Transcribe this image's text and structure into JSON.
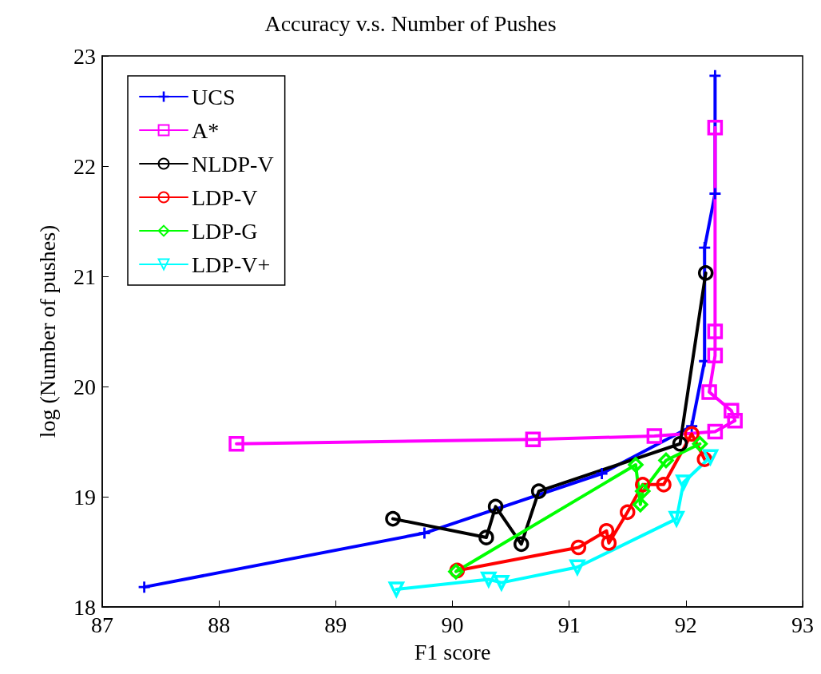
{
  "chart_data": {
    "type": "line",
    "title": "Accuracy v.s. Number of Pushes",
    "xlabel": "F1 score",
    "ylabel": "log (Number of pushes)",
    "xlim": [
      87,
      93
    ],
    "xticks": [
      87,
      88,
      89,
      90,
      91,
      92,
      93
    ],
    "ylim": [
      18,
      23
    ],
    "yticks": [
      18,
      19,
      20,
      21,
      22,
      23
    ],
    "grid": false,
    "legend": "top left",
    "line_style": "solid",
    "series": [
      {
        "name": "UCS",
        "color": "#0000ff",
        "marker": "cross",
        "x": [
          87.36,
          89.76,
          91.28,
          92.05,
          92.16,
          92.16,
          92.25,
          92.25
        ],
        "values": [
          18.18,
          18.67,
          19.21,
          19.64,
          20.23,
          21.26,
          21.75,
          22.82
        ]
      },
      {
        "name": "A*",
        "color": "#ff00ff",
        "marker": "square",
        "x": [
          88.15,
          90.69,
          91.73,
          92.25,
          92.42,
          92.39,
          92.2,
          92.25,
          92.25,
          92.25
        ],
        "values": [
          19.48,
          19.52,
          19.55,
          19.59,
          19.69,
          19.78,
          19.95,
          20.28,
          20.5,
          22.35
        ]
      },
      {
        "name": "NLDP-V",
        "color": "#000000",
        "marker": "circle",
        "x": [
          89.49,
          90.29,
          90.37,
          90.59,
          90.74,
          91.95,
          92.17
        ],
        "values": [
          18.8,
          18.63,
          18.91,
          18.57,
          19.05,
          19.48,
          21.03
        ]
      },
      {
        "name": "LDP-V",
        "color": "#ff0000",
        "marker": "circle",
        "x": [
          90.04,
          91.08,
          91.32,
          91.34,
          91.5,
          91.63,
          91.81,
          92.05,
          92.16
        ],
        "values": [
          18.33,
          18.54,
          18.69,
          18.58,
          18.86,
          19.11,
          19.11,
          19.57,
          19.34
        ]
      },
      {
        "name": "LDP-G",
        "color": "#00ff00",
        "marker": "diamond",
        "x": [
          90.03,
          91.57,
          91.61,
          91.63,
          91.83,
          92.12
        ],
        "values": [
          18.32,
          19.29,
          18.93,
          19.05,
          19.33,
          19.48
        ]
      },
      {
        "name": "LDP-V+",
        "color": "#00ffff",
        "marker": "triangle",
        "x": [
          89.52,
          90.31,
          90.42,
          91.07,
          91.92,
          91.98,
          92.21
        ],
        "values": [
          18.16,
          18.25,
          18.22,
          18.36,
          18.8,
          19.13,
          19.36
        ]
      }
    ]
  }
}
